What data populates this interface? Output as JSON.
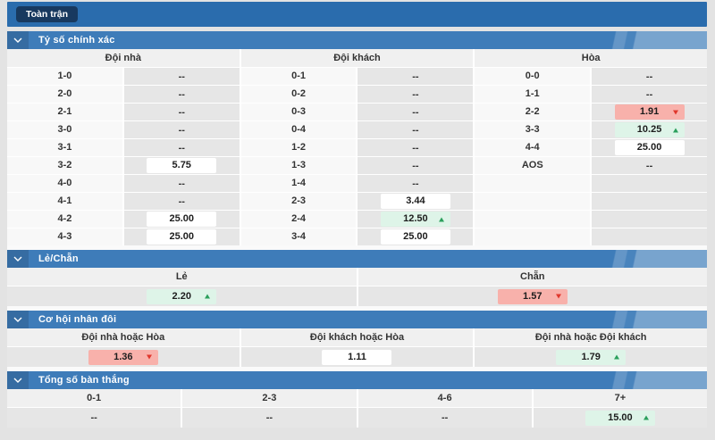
{
  "toolbar": {
    "full_match_label": "Toàn trận"
  },
  "icons": {
    "chevron_down": "∨",
    "trend_up": "▲",
    "trend_down": "▼"
  },
  "colors": {
    "topbar_blue": "#2a6cad",
    "button_navy": "#18395f",
    "section_header_blue": "#3e7cb9",
    "up_bg": "#def4e8",
    "up_arrow": "#2ba05c",
    "down_bg": "#f8b1ab",
    "down_arrow": "#e0372c"
  },
  "sections": [
    {
      "id": "correct-score",
      "type": "matrix",
      "title": "Tỷ số chính xác",
      "row_count": 10,
      "groups": [
        {
          "header": "Đội nhà",
          "rows": [
            {
              "label": "1-0",
              "odds": "--"
            },
            {
              "label": "2-0",
              "odds": "--"
            },
            {
              "label": "2-1",
              "odds": "--"
            },
            {
              "label": "3-0",
              "odds": "--"
            },
            {
              "label": "3-1",
              "odds": "--"
            },
            {
              "label": "3-2",
              "odds": "5.75",
              "trend": "flat"
            },
            {
              "label": "4-0",
              "odds": "--"
            },
            {
              "label": "4-1",
              "odds": "--"
            },
            {
              "label": "4-2",
              "odds": "25.00",
              "trend": "flat"
            },
            {
              "label": "4-3",
              "odds": "25.00",
              "trend": "flat"
            }
          ]
        },
        {
          "header": "Đội khách",
          "rows": [
            {
              "label": "0-1",
              "odds": "--"
            },
            {
              "label": "0-2",
              "odds": "--"
            },
            {
              "label": "0-3",
              "odds": "--"
            },
            {
              "label": "0-4",
              "odds": "--"
            },
            {
              "label": "1-2",
              "odds": "--"
            },
            {
              "label": "1-3",
              "odds": "--"
            },
            {
              "label": "1-4",
              "odds": "--"
            },
            {
              "label": "2-3",
              "odds": "3.44",
              "trend": "flat"
            },
            {
              "label": "2-4",
              "odds": "12.50",
              "trend": "up"
            },
            {
              "label": "3-4",
              "odds": "25.00",
              "trend": "flat"
            }
          ]
        },
        {
          "header": "Hòa",
          "rows": [
            {
              "label": "0-0",
              "odds": "--"
            },
            {
              "label": "1-1",
              "odds": "--"
            },
            {
              "label": "2-2",
              "odds": "1.91",
              "trend": "down"
            },
            {
              "label": "3-3",
              "odds": "10.25",
              "trend": "up"
            },
            {
              "label": "4-4",
              "odds": "25.00",
              "trend": "flat"
            },
            {
              "label": "AOS",
              "odds": "--"
            }
          ]
        }
      ]
    },
    {
      "id": "odd-even",
      "type": "columns",
      "title": "Lẻ/Chẵn",
      "columns": [
        {
          "header": "Lẻ",
          "odds": "2.20",
          "trend": "up"
        },
        {
          "header": "Chẵn",
          "odds": "1.57",
          "trend": "down"
        }
      ]
    },
    {
      "id": "double-chance",
      "type": "columns",
      "title": "Cơ hội nhân đôi",
      "columns": [
        {
          "header": "Đội nhà hoặc Hòa",
          "odds": "1.36",
          "trend": "down"
        },
        {
          "header": "Đội khách hoặc Hòa",
          "odds": "1.11",
          "trend": "flat"
        },
        {
          "header": "Đội nhà hoặc Đội khách",
          "odds": "1.79",
          "trend": "up"
        }
      ]
    },
    {
      "id": "total-goals",
      "type": "columns",
      "title": "Tổng số bàn thắng",
      "columns": [
        {
          "header": "0-1",
          "odds": "--"
        },
        {
          "header": "2-3",
          "odds": "--"
        },
        {
          "header": "4-6",
          "odds": "--"
        },
        {
          "header": "7+",
          "odds": "15.00",
          "trend": "up"
        }
      ]
    }
  ]
}
